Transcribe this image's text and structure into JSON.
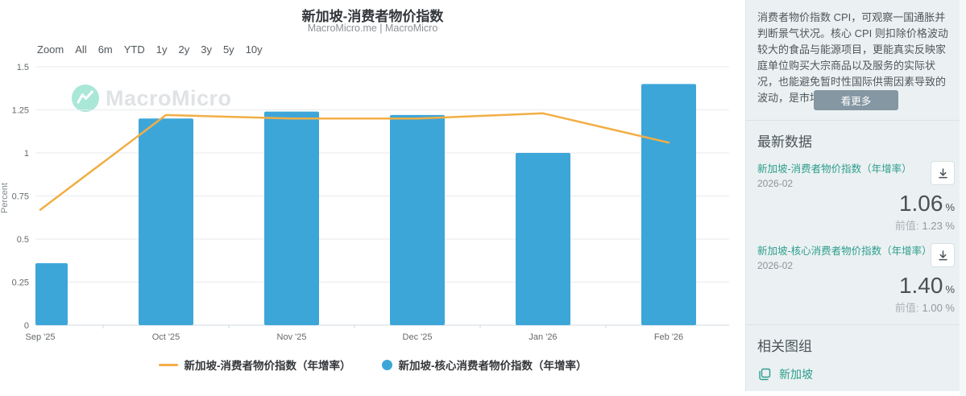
{
  "chart": {
    "title": "新加坡-消费者物价指数",
    "subtitle": "MacroMicro.me | MacroMicro",
    "watermark": "MacroMicro",
    "toolbar": {
      "zoom_label": "Zoom",
      "ranges": [
        "All",
        "6m",
        "YTD",
        "1y",
        "2y",
        "3y",
        "5y",
        "10y"
      ]
    }
  },
  "chart_data": {
    "type": "combo",
    "categories": [
      "Sep '25",
      "Oct '25",
      "Nov '25",
      "Dec '25",
      "Jan '26",
      "Feb '26"
    ],
    "series": [
      {
        "name": "新加坡-消费者物价指数（年增率）",
        "type": "line",
        "color": "#F2AE45",
        "values": [
          0.67,
          1.22,
          1.2,
          1.2,
          1.23,
          1.06
        ]
      },
      {
        "name": "新加坡-核心消费者物价指数（年增率）",
        "type": "bar",
        "color": "#3DA6D9",
        "values": [
          0.36,
          1.2,
          1.24,
          1.22,
          1.0,
          1.4
        ]
      }
    ],
    "ylabel": "Percent",
    "xlabel": "",
    "ylim": [
      0,
      1.5
    ],
    "ytick_step": 0.25,
    "yticks": [
      "0",
      "0.25",
      "0.5",
      "0.75",
      "1",
      "1.25",
      "1.5"
    ],
    "grid": true,
    "legend_position": "bottom"
  },
  "sidebar": {
    "description": "消费者物价指数 CPI，可观察一国通胀并判断景气状况。核心 CPI 则扣除价格波动较大的食品与能源项目，更能真实反映家庭单位购买大宗商品以及服务的实际状况，也能避免暂时性国际供需因素导致的波动，是市场更关注的重点。",
    "see_more_label": "看更多",
    "latest_header": "最新数据",
    "items": [
      {
        "title": "新加坡-消费者物价指数（年增率）",
        "date": "2026-02",
        "value": "1.06",
        "unit": "%",
        "prev_label": "前值:",
        "prev_value": "1.23 %"
      },
      {
        "title": "新加坡-核心消费者物价指数（年增率）",
        "date": "2026-02",
        "value": "1.40",
        "unit": "%",
        "prev_label": "前值:",
        "prev_value": "1.00 %"
      }
    ],
    "related_header": "相关图组",
    "related_items": [
      {
        "label": "新加坡"
      }
    ],
    "colors": {
      "accent_teal": "#2E9D8D",
      "button_bg": "#8497A3",
      "logo_mint": "#A9E7D6"
    }
  }
}
